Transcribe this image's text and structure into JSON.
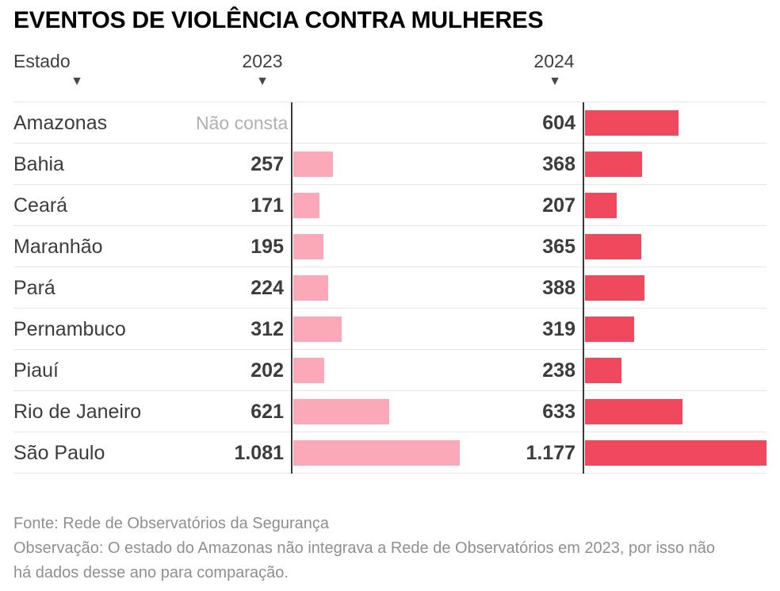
{
  "title": "EVENTOS DE VIOLÊNCIA CONTRA MULHERES",
  "columns": {
    "state": "Estado",
    "y2023": "2023",
    "y2024": "2024"
  },
  "icons": {
    "sort_indicator": "▼"
  },
  "colors": {
    "bar_2023": "#fba9b8",
    "bar_2024": "#f0495e",
    "axis": "#3a3a3a",
    "na_text": "#b0b0b0"
  },
  "rows": [
    {
      "state": "Amazonas",
      "v2023_label": "Não consta",
      "v2023": null,
      "v2024_label": "604",
      "v2024": 604
    },
    {
      "state": "Bahia",
      "v2023_label": "257",
      "v2023": 257,
      "v2024_label": "368",
      "v2024": 368
    },
    {
      "state": "Ceará",
      "v2023_label": "171",
      "v2023": 171,
      "v2024_label": "207",
      "v2024": 207
    },
    {
      "state": "Maranhão",
      "v2023_label": "195",
      "v2023": 195,
      "v2024_label": "365",
      "v2024": 365
    },
    {
      "state": "Pará",
      "v2023_label": "224",
      "v2023": 224,
      "v2024_label": "388",
      "v2024": 388
    },
    {
      "state": "Pernambuco",
      "v2023_label": "312",
      "v2023": 312,
      "v2024_label": "319",
      "v2024": 319
    },
    {
      "state": "Piauí",
      "v2023_label": "202",
      "v2023": 202,
      "v2024_label": "238",
      "v2024": 238
    },
    {
      "state": "Rio de Janeiro",
      "v2023_label": "621",
      "v2023": 621,
      "v2024_label": "633",
      "v2024": 633
    },
    {
      "state": "São Paulo",
      "v2023_label": "1.081",
      "v2023": 1081,
      "v2024_label": "1.177",
      "v2024": 1177
    }
  ],
  "footer": {
    "source": "Fonte: Rede de Observatórios da Segurança",
    "note": "Observação: O estado do Amazonas não integrava a Rede de Observatórios em 2023, por isso não há dados desse ano para comparação."
  },
  "chart_data": {
    "type": "bar",
    "orientation": "horizontal",
    "title": "EVENTOS DE VIOLÊNCIA CONTRA MULHERES",
    "categories": [
      "Amazonas",
      "Bahia",
      "Ceará",
      "Maranhão",
      "Pará",
      "Pernambuco",
      "Piauí",
      "Rio de Janeiro",
      "São Paulo"
    ],
    "series": [
      {
        "name": "2023",
        "color": "#fba9b8",
        "values": [
          null,
          257,
          171,
          195,
          224,
          312,
          202,
          621,
          1081
        ]
      },
      {
        "name": "2024",
        "color": "#f0495e",
        "values": [
          604,
          368,
          207,
          365,
          388,
          319,
          238,
          633,
          1177
        ]
      }
    ],
    "missing_value_label": "Não consta",
    "value_axis_range": [
      0,
      1177
    ],
    "grid": false,
    "legend_position": "none",
    "source": "Fonte: Rede de Observatórios da Segurança",
    "note": "Observação: O estado do Amazonas não integrava a Rede de Observatórios em 2023, por isso não há dados desse ano para comparação."
  }
}
